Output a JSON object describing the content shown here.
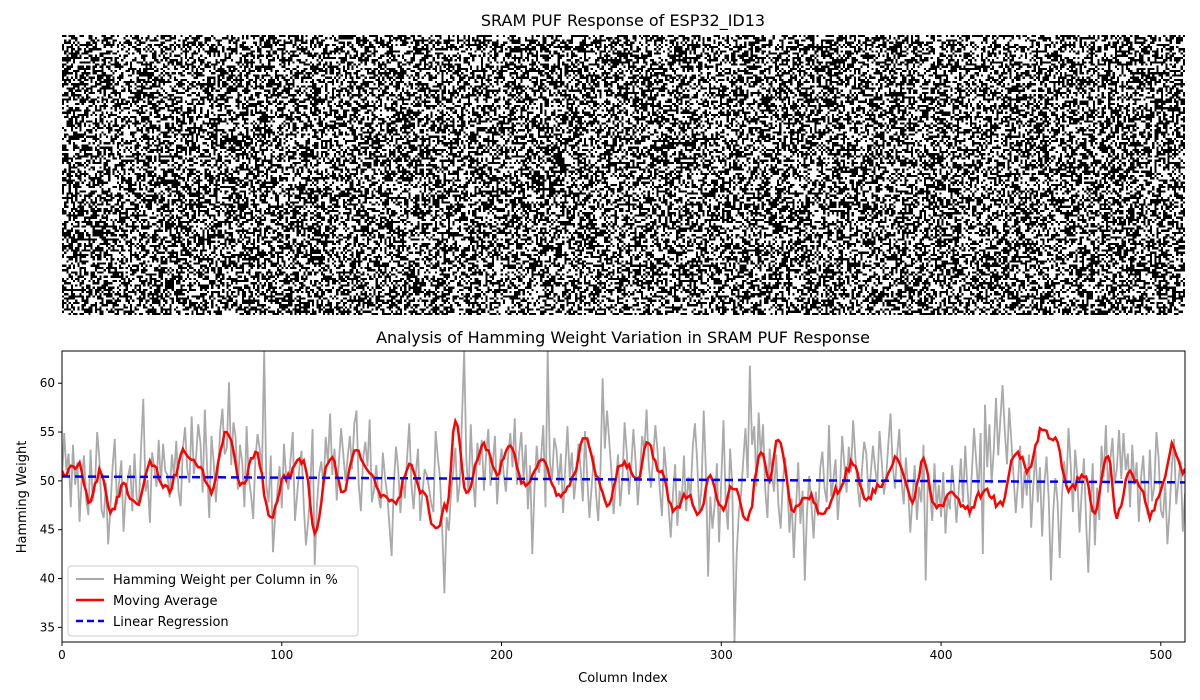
{
  "figure": {
    "top_title": "SRAM PUF Response of ESP32_ID13",
    "bottom_title": "Analysis of Hamming Weight Variation in SRAM PUF Response"
  },
  "chart_data": [
    {
      "type": "heatmap",
      "title": "SRAM PUF Response of ESP32_ID13",
      "columns": 512,
      "rows": 128,
      "colors": {
        "bit_0": "#ffffff",
        "bit_1": "#000000"
      },
      "axes": "off"
    },
    {
      "type": "line",
      "title": "Analysis of Hamming Weight Variation in SRAM PUF Response",
      "xlabel": "Column Index",
      "ylabel": "Hamming Weight",
      "xlim": [
        0,
        511
      ],
      "ylim": [
        33.5,
        63.3
      ],
      "xticks": [
        0,
        100,
        200,
        300,
        400,
        500
      ],
      "yticks": [
        35,
        40,
        45,
        50,
        55,
        60
      ],
      "legend_position": "lower-left",
      "series": [
        {
          "name": "Hamming Weight per Column in %",
          "color": "#aaaaaa",
          "style": "solid",
          "x_step": 1,
          "values": [
            50.2,
            54.9,
            51.1,
            52.8,
            47.3,
            53.7,
            49.6,
            51.9,
            45.8,
            50.4,
            52.6,
            48.1,
            46.5,
            53.2,
            47.9,
            49.4,
            55.0,
            52.3,
            47.0,
            46.2,
            49.8,
            43.5,
            47.1,
            51.4,
            54.3,
            47.6,
            49.9,
            52.1,
            44.8,
            48.7,
            50.3,
            51.6,
            46.9,
            52.8,
            48.2,
            47.5,
            53.6,
            58.4,
            48.9,
            50.1,
            45.7,
            52.9,
            51.3,
            49.4,
            54.2,
            49.7,
            53.8,
            51.0,
            50.6,
            48.3,
            52.7,
            50.5,
            54.1,
            49.0,
            47.4,
            53.3,
            55.5,
            51.2,
            49.8,
            56.6,
            50.7,
            52.4,
            55.8,
            53.9,
            48.8,
            57.3,
            51.5,
            46.2,
            54.6,
            52.0,
            47.8,
            50.9,
            55.2,
            57.4,
            52.7,
            53.4,
            60.1,
            51.6,
            56.0,
            54.5,
            49.1,
            53.7,
            51.9,
            47.3,
            55.6,
            50.2,
            48.6,
            46.1,
            52.3,
            54.8,
            53.2,
            51.1,
            63.3,
            49.5,
            47.8,
            52.6,
            42.7,
            46.3,
            48.9,
            51.5,
            47.2,
            53.8,
            50.4,
            49.1,
            52.2,
            55.0,
            45.9,
            48.6,
            51.3,
            53.1,
            47.6,
            43.4,
            45.8,
            49.2,
            55.3,
            41.4,
            47.5,
            50.7,
            52.0,
            49.3,
            54.5,
            51.8,
            56.9,
            50.6,
            53.3,
            48.0,
            51.9,
            55.4,
            52.7,
            50.0,
            52.4,
            54.6,
            51.2,
            55.8,
            57.2,
            49.7,
            46.9,
            52.3,
            54.0,
            51.5,
            56.3,
            47.8,
            49.1,
            51.6,
            48.4,
            47.2,
            52.9,
            50.3,
            48.6,
            45.4,
            42.3,
            49.8,
            53.5,
            51.1,
            46.7,
            50.4,
            48.2,
            52.3,
            55.9,
            49.6,
            47.1,
            50.8,
            53.3,
            45.9,
            48.7,
            51.2,
            50.6,
            49.3,
            47.7,
            46.8,
            55.1,
            52.4,
            50.3,
            45.2,
            38.5,
            46.3,
            44.9,
            48.6,
            51.0,
            53.4,
            47.8,
            49.7,
            56.3,
            63.3,
            52.1,
            48.6,
            55.8,
            50.4,
            47.3,
            53.9,
            51.6,
            54.2,
            49.0,
            52.7,
            55.3,
            49.5,
            51.8,
            54.6,
            47.6,
            51.2,
            53.3,
            50.7,
            48.9,
            52.5,
            54.9,
            51.4,
            56.4,
            49.6,
            52.8,
            55.0,
            50.2,
            53.7,
            47.1,
            51.6,
            42.5,
            49.3,
            53.6,
            50.8,
            52.4,
            55.7,
            47.3,
            63.3,
            51.9,
            50.1,
            54.4,
            53.2,
            49.6,
            52.8,
            46.7,
            51.3,
            55.6,
            50.4,
            52.9,
            48.1,
            50.6,
            53.8,
            51.2,
            47.9,
            55.1,
            50.3,
            46.2,
            49.4,
            52.6,
            48.7,
            45.9,
            50.8,
            60.5,
            53.3,
            57.2,
            54.1,
            51.0,
            46.6,
            49.8,
            52.7,
            47.4,
            50.2,
            56.0,
            52.9,
            48.6,
            51.4,
            55.3,
            52.0,
            47.5,
            50.8,
            54.6,
            53.1,
            57.3,
            51.6,
            49.3,
            52.4,
            55.7,
            53.0,
            49.1,
            46.4,
            53.5,
            50.9,
            47.3,
            44.2,
            48.6,
            51.7,
            45.4,
            49.0,
            47.8,
            52.6,
            46.9,
            50.4,
            48.2,
            53.4,
            55.9,
            52.1,
            46.8,
            49.3,
            57.2,
            51.0,
            40.2,
            48.4,
            45.1,
            47.6,
            51.8,
            43.7,
            50.1,
            56.2,
            47.8,
            45.0,
            53.3,
            49.6,
            33.5,
            42.5,
            46.8,
            48.7,
            52.1,
            55.4,
            50.3,
            61.8,
            53.7,
            55.6,
            49.4,
            57.0,
            52.4,
            55.8,
            49.1,
            46.2,
            53.3,
            50.8,
            48.9,
            52.7,
            47.5,
            45.1,
            49.8,
            52.4,
            50.1,
            44.7,
            48.2,
            42.1,
            47.3,
            51.9,
            45.6,
            49.0,
            39.8,
            46.8,
            50.5,
            47.6,
            44.1,
            48.9,
            46.4,
            51.3,
            53.0,
            49.2,
            47.8,
            55.7,
            48.4,
            50.1,
            52.2,
            46.0,
            49.3,
            54.6,
            51.7,
            48.8,
            53.5,
            50.9,
            56.2,
            52.4,
            49.6,
            47.3,
            51.1,
            54.0,
            52.8,
            48.4,
            50.7,
            53.6,
            51.3,
            49.5,
            55.1,
            52.0,
            48.6,
            50.3,
            53.8,
            56.9,
            51.5,
            49.2,
            52.7,
            55.3,
            50.0,
            47.6,
            52.4,
            49.1,
            44.7,
            48.3,
            51.6,
            46.0,
            49.4,
            47.8,
            53.7,
            39.8,
            50.2,
            48.7,
            45.9,
            51.8,
            47.1,
            49.6,
            46.3,
            50.9,
            44.6,
            48.4,
            47.1,
            51.6,
            49.2,
            45.7,
            48.9,
            52.3,
            47.8,
            53.6,
            49.3,
            46.2,
            50.8,
            55.4,
            52.0,
            48.7,
            54.9,
            42.5,
            57.8,
            51.4,
            55.8,
            49.7,
            53.2,
            58.5,
            52.6,
            56.4,
            59.8,
            55.1,
            51.7,
            57.5,
            54.0,
            50.4,
            46.7,
            49.9,
            53.6,
            47.2,
            51.0,
            48.5,
            52.7,
            45.2,
            49.6,
            53.1,
            47.8,
            51.4,
            44.3,
            49.7,
            52.5,
            48.1,
            39.8,
            46.6,
            50.3,
            47.9,
            42.1,
            48.4,
            52.0,
            49.3,
            55.4,
            51.6,
            46.8,
            53.2,
            50.5,
            44.7,
            48.9,
            52.3,
            45.9,
            40.6,
            47.2,
            51.8,
            43.4,
            49.3,
            46.0,
            53.6,
            50.4,
            55.7,
            48.8,
            52.1,
            54.4,
            49.7,
            51.3,
            55.2
          ]
        },
        {
          "name": "Moving Average",
          "color": "#ff0000",
          "style": "solid",
          "x_step": 1,
          "control_points": [
            [
              0,
              50.8
            ],
            [
              8,
              51.8
            ],
            [
              12,
              48.0
            ],
            [
              18,
              51.0
            ],
            [
              22,
              46.5
            ],
            [
              28,
              49.5
            ],
            [
              34,
              47.5
            ],
            [
              40,
              52.0
            ],
            [
              48,
              49.0
            ],
            [
              56,
              53.0
            ],
            [
              62,
              51.5
            ],
            [
              68,
              49.0
            ],
            [
              75,
              55.3
            ],
            [
              82,
              49.5
            ],
            [
              88,
              52.8
            ],
            [
              95,
              46.5
            ],
            [
              102,
              50.5
            ],
            [
              110,
              52.2
            ],
            [
              115,
              45.0
            ],
            [
              122,
              52.5
            ],
            [
              128,
              49.0
            ],
            [
              134,
              53.2
            ],
            [
              140,
              51.0
            ],
            [
              145,
              48.8
            ],
            [
              152,
              48.0
            ],
            [
              158,
              51.5
            ],
            [
              164,
              49.0
            ],
            [
              170,
              45.0
            ],
            [
              175,
              47.5
            ],
            [
              179,
              56.0
            ],
            [
              184,
              49.0
            ],
            [
              192,
              53.5
            ],
            [
              198,
              51.0
            ],
            [
              204,
              53.5
            ],
            [
              210,
              49.5
            ],
            [
              218,
              52.0
            ],
            [
              226,
              48.5
            ],
            [
              232,
              50.0
            ],
            [
              238,
              54.5
            ],
            [
              244,
              50.0
            ],
            [
              248,
              47.5
            ],
            [
              255,
              52.0
            ],
            [
              262,
              50.0
            ],
            [
              266,
              54.0
            ],
            [
              272,
              51.0
            ],
            [
              278,
              47.0
            ],
            [
              285,
              48.5
            ],
            [
              290,
              46.5
            ],
            [
              295,
              50.5
            ],
            [
              300,
              47.0
            ],
            [
              305,
              49.5
            ],
            [
              312,
              46.0
            ],
            [
              318,
              53.0
            ],
            [
              322,
              50.0
            ],
            [
              326,
              54.5
            ],
            [
              333,
              47.0
            ],
            [
              340,
              48.5
            ],
            [
              346,
              46.5
            ],
            [
              353,
              49.0
            ],
            [
              360,
              52.0
            ],
            [
              366,
              48.0
            ],
            [
              372,
              49.5
            ],
            [
              380,
              52.5
            ],
            [
              387,
              48.0
            ],
            [
              392,
              52.0
            ],
            [
              398,
              47.0
            ],
            [
              405,
              49.0
            ],
            [
              412,
              47.0
            ],
            [
              420,
              49.0
            ],
            [
              427,
              47.5
            ],
            [
              434,
              53.0
            ],
            [
              440,
              51.0
            ],
            [
              446,
              55.5
            ],
            [
              452,
              54.0
            ],
            [
              458,
              49.0
            ],
            [
              465,
              50.5
            ],
            [
              470,
              47.0
            ],
            [
              476,
              52.5
            ],
            [
              480,
              46.5
            ],
            [
              486,
              51.0
            ],
            [
              490,
              49.5
            ],
            [
              495,
              46.5
            ],
            [
              500,
              49.0
            ],
            [
              505,
              53.5
            ],
            [
              511,
              51.0
            ]
          ]
        },
        {
          "name": "Linear Regression",
          "color": "#0000ff",
          "style": "dashed",
          "x": [
            0,
            511
          ],
          "values": [
            50.45,
            49.85
          ]
        }
      ]
    }
  ]
}
